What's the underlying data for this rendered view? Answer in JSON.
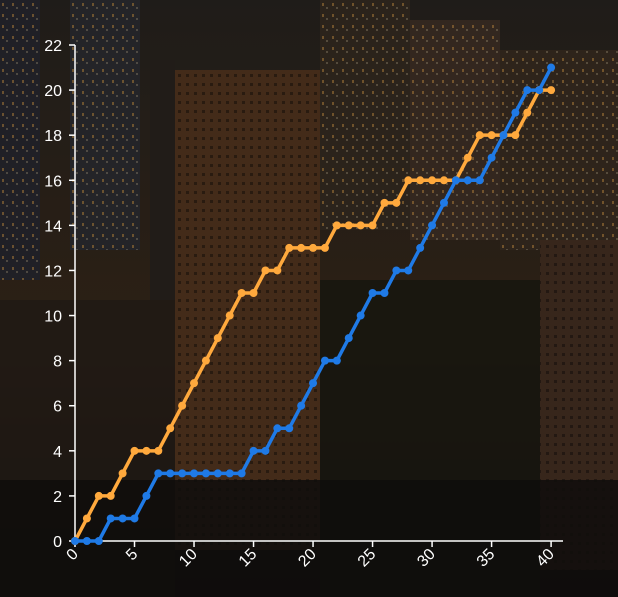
{
  "chart_data": {
    "type": "line",
    "title": "",
    "xlabel": "",
    "ylabel": "",
    "xlim": [
      0,
      41
    ],
    "ylim": [
      0,
      22
    ],
    "x_ticks": [
      "0",
      "5",
      "10",
      "15",
      "20",
      "25",
      "30",
      "35",
      "40"
    ],
    "y_ticks": [
      "0",
      "2",
      "4",
      "6",
      "8",
      "10",
      "12",
      "14",
      "16",
      "18",
      "20",
      "22"
    ],
    "grid": false,
    "legend": "none",
    "x": [
      0,
      1,
      2,
      3,
      4,
      5,
      6,
      7,
      8,
      9,
      10,
      11,
      12,
      13,
      14,
      15,
      16,
      17,
      18,
      19,
      20,
      21,
      22,
      23,
      24,
      25,
      26,
      27,
      28,
      29,
      30,
      31,
      32,
      33,
      34,
      35,
      36,
      37,
      38,
      39,
      40
    ],
    "series": [
      {
        "color": "#ffa93d",
        "values": [
          0,
          1,
          2,
          2,
          3,
          4,
          4,
          4,
          5,
          6,
          7,
          8,
          9,
          10,
          11,
          11,
          12,
          12,
          13,
          13,
          13,
          13,
          14,
          14,
          14,
          14,
          15,
          15,
          16,
          16,
          16,
          16,
          16,
          17,
          18,
          18,
          18,
          18,
          19,
          20,
          20
        ]
      },
      {
        "color": "#1f7ae6",
        "values": [
          0,
          0,
          0,
          1,
          1,
          1,
          2,
          3,
          3,
          3,
          3,
          3,
          3,
          3,
          3,
          4,
          4,
          5,
          5,
          6,
          7,
          8,
          8,
          9,
          10,
          11,
          11,
          12,
          12,
          13,
          14,
          15,
          16,
          16,
          16,
          17,
          18,
          19,
          20,
          20,
          21
        ]
      }
    ]
  },
  "colors": {
    "axis": "#ffffff",
    "background": "#1a1712"
  }
}
